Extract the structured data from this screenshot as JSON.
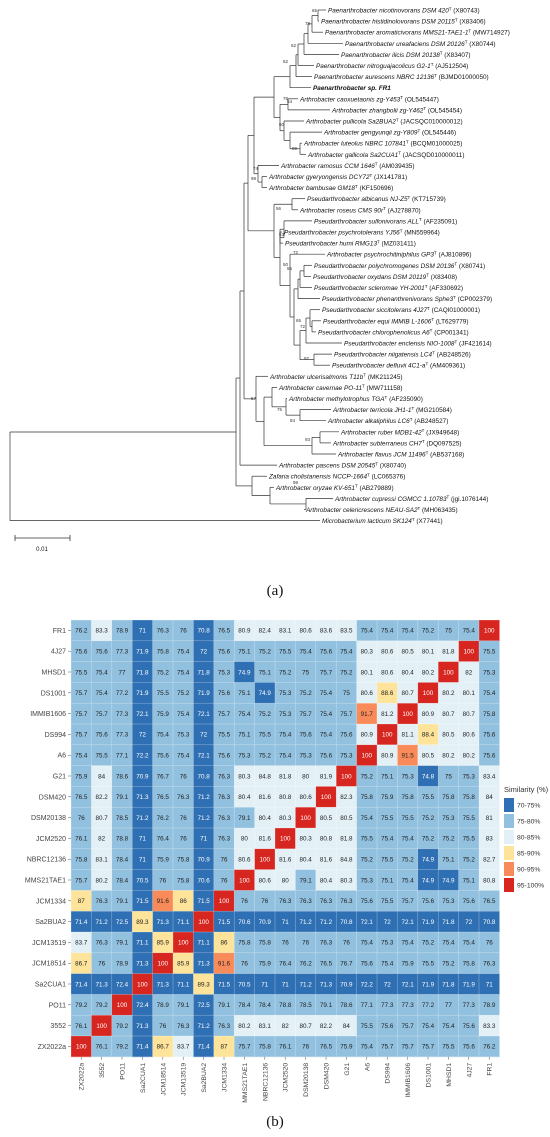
{
  "figure": {
    "panel_a_label": "(a)",
    "panel_b_label": "(b)"
  },
  "tree": {
    "scale_label": "0.01",
    "leaves": [
      {
        "name": "Paenarthrobacter nicotinovorans DSM 420",
        "sup": "T",
        "acc": "(X80743)"
      },
      {
        "name": "Paenarthrobacter histidinolovorans DSM 20115",
        "sup": "T",
        "acc": "(X83406)"
      },
      {
        "name": "Paenarthrobacter aromaticivorans MMS21-TAE1-1",
        "sup": "T",
        "acc": "(MW714927)"
      },
      {
        "name": "Paenarthrobacter ureafaciens DSM 20126",
        "sup": "T",
        "acc": "(X80744)"
      },
      {
        "name": "Paenarthrobacter ilicis DSM 20138",
        "sup": "T",
        "acc": "(X83407)"
      },
      {
        "name": "Paenarthrobacter nitroguajacolicus G2-1",
        "sup": "T",
        "acc": "(AJ512504)"
      },
      {
        "name": "Paenarthrobacter aurescens NBRC 12136",
        "sup": "T",
        "acc": "(BJMD01000050)"
      },
      {
        "name": "Paenarthrobacter sp. FR1",
        "sup": "",
        "acc": "",
        "bold": true
      },
      {
        "name": "Arthrobacter caoxuetaonis zg-Y453",
        "sup": "T",
        "acc": "(OL545447)"
      },
      {
        "name": "Arthrobacter zhangbolii zg-Y462",
        "sup": "T",
        "acc": "(OL545454)"
      },
      {
        "name": "Arthrobacter pullicola Sa2BUA2",
        "sup": "T",
        "acc": "(JACSQC010000012)"
      },
      {
        "name": "Arthrobacter gengyunqii zg-Y809",
        "sup": "T",
        "acc": "(OL545446)"
      },
      {
        "name": "Arthrobacter luteolus NBRC 107841",
        "sup": "T",
        "acc": "(BCQM01000025)"
      },
      {
        "name": "Arthrobacter gallicola Sa2CUA1",
        "sup": "T",
        "acc": "(JACSQD010000011)"
      },
      {
        "name": "Arthrobacter ramosus CCM 1646",
        "sup": "T",
        "acc": "(AM039435)"
      },
      {
        "name": "Arthrobacter gyeryongensis DCY72",
        "sup": "T",
        "acc": "(JX141781)"
      },
      {
        "name": "Arthrobacter bambusae GM18",
        "sup": "T",
        "acc": "(KF150696)"
      },
      {
        "name": "Pseudarthrobacter albicanus NJ-Z5",
        "sup": "T",
        "acc": "(KT715739)"
      },
      {
        "name": "Arthrobacter roseus CMS 90r",
        "sup": "T",
        "acc": "(AJ278870)"
      },
      {
        "name": "Pseudarthrobacter sulfonivorans ALL",
        "sup": "T",
        "acc": "(AF235091)"
      },
      {
        "name": "Pseudarthrobacter psychrotolerans YJ56",
        "sup": "T",
        "acc": "(MN559964)"
      },
      {
        "name": "Pseudarthrobacter humi RMG13",
        "sup": "T",
        "acc": "(MZ031411)"
      },
      {
        "name": "Arthrobacter psychrochitiniphilus GP3",
        "sup": "T",
        "acc": "(AJ810896)"
      },
      {
        "name": "Pseudarthrobacter polychromogenes DSM 20136",
        "sup": "T",
        "acc": "(X80741)"
      },
      {
        "name": "Pseudarthrobacter oxydans DSM 20119",
        "sup": "T",
        "acc": "(X83408)"
      },
      {
        "name": "Pseudarthrobacter scleromae YH-2001",
        "sup": "T",
        "acc": "(AF330692)"
      },
      {
        "name": "Pseudarthrobacter phenanthrenivorans Sphe3",
        "sup": "T",
        "acc": "(CP002379)"
      },
      {
        "name": "Pseudarthrobacter siccitolerans 4J27",
        "sup": "T",
        "acc": "(CAQI01000001)"
      },
      {
        "name": "Pseudarthrobacter equi IMMIB L-1606",
        "sup": "T",
        "acc": "(LT629779)"
      },
      {
        "name": "Pseudarthrobacter chlorophenolicus A6",
        "sup": "T",
        "acc": "(CP001341)"
      },
      {
        "name": "Pseudarthrobacter enclensis NIO-1008",
        "sup": "T",
        "acc": "(JF421614)"
      },
      {
        "name": "Pseudarthrobacter niigatensis LC4",
        "sup": "T",
        "acc": "(AB248526)"
      },
      {
        "name": "Pseudarthrobacter defluvii 4C1-a",
        "sup": "T",
        "acc": "(AM409361)"
      },
      {
        "name": "Arthrobacter ulcerisalmonis T11b",
        "sup": "T",
        "acc": "(MK211245)"
      },
      {
        "name": "Arthrobacter cavernae PO-11",
        "sup": "T",
        "acc": "(MW711158)"
      },
      {
        "name": "Arthrobacter methylotrophus TGA",
        "sup": "T",
        "acc": "(AF235090)"
      },
      {
        "name": "Arthrobacter terricola JH1-1",
        "sup": "T",
        "acc": "(MG210584)"
      },
      {
        "name": "Arthrobacter alkaliphilus LC6",
        "sup": "T",
        "acc": "(AB248527)"
      },
      {
        "name": "Arthrobacter ruber MDB1-42",
        "sup": "T",
        "acc": "(JX949648)"
      },
      {
        "name": "Arthrobacter subterraneus CH7",
        "sup": "T",
        "acc": "(DQ097525)"
      },
      {
        "name": "Arthrobacter flavus JCM 11496",
        "sup": "T",
        "acc": "(AB537168)"
      },
      {
        "name": "Arthrobacter pascens DSM 20545",
        "sup": "T",
        "acc": "(X80740)"
      },
      {
        "name": "Zafaria cholistanensis NCCP-1664",
        "sup": "T",
        "acc": "(LC065376)"
      },
      {
        "name": "Arthrobacter oryzae KV-651",
        "sup": "T",
        "acc": "(AB279889)"
      },
      {
        "name": "Arthrobacter cupressi CGMCC 1.10783",
        "sup": "T",
        "acc": "(jgi.1076144)"
      },
      {
        "name": "Arthrobacter celericrescens NEAU-SA2",
        "sup": "T",
        "acc": "(MH063435)"
      },
      {
        "name": "Microbacterium lacticum SK124",
        "sup": "T",
        "acc": "(X77441)"
      }
    ],
    "bootstrap_labels": [
      "65",
      "78",
      "52",
      "62",
      "78",
      "54",
      "99",
      "60",
      "74",
      "98",
      "56",
      "53",
      "72",
      "50",
      "55",
      "65",
      "72",
      "97",
      "57",
      "75",
      "84",
      "93",
      "98"
    ]
  },
  "heatmap": {
    "legend_title": "Similarity (%)",
    "legend_items": [
      {
        "label": "70-75%",
        "color": "#2f6fb3"
      },
      {
        "label": "75-80%",
        "color": "#92c0df"
      },
      {
        "label": "80-85%",
        "color": "#e3f1f7"
      },
      {
        "label": "85-90%",
        "color": "#fde49a"
      },
      {
        "label": "90-95%",
        "color": "#f98b5a"
      },
      {
        "label": "95-100%",
        "color": "#d7251f"
      }
    ],
    "rows": [
      "FR1",
      "4J27",
      "MHSD1",
      "DS1001",
      "IMMIB1606",
      "DS994",
      "A6",
      "G21",
      "DSM420",
      "DSM20138",
      "JCM2520",
      "NBRC12136",
      "MMS21TAE1",
      "JCM1334",
      "Sa2BUA2",
      "JCM13519",
      "JCM18514",
      "Sa2CUA1",
      "PO11",
      "3552",
      "ZX2022a"
    ],
    "columns": [
      "ZX2022a",
      "3552",
      "PO11",
      "Sa2CUA1",
      "JCM18514",
      "JCM13519",
      "Sa2BUA2",
      "JCM1334",
      "MMS21TAE1",
      "NBRC12136",
      "JCM2520",
      "DSM20138",
      "DSM420",
      "G21",
      "A6",
      "DS994",
      "IMMIB1606",
      "DS1001",
      "MHSD1",
      "4J27",
      "FR1"
    ],
    "values": [
      [
        76.2,
        83.3,
        78.9,
        71,
        76.3,
        76,
        70.8,
        76.5,
        80.9,
        82.4,
        83.1,
        80.6,
        83.6,
        83.5,
        75.4,
        75.4,
        75.4,
        75.2,
        75,
        75.4,
        100
      ],
      [
        75.6,
        75.6,
        77.3,
        71.9,
        75.8,
        75.4,
        72,
        75.6,
        75.1,
        75.2,
        75.5,
        75.4,
        75.6,
        75.4,
        80.3,
        80.6,
        80.5,
        80.1,
        81.8,
        100,
        75.5
      ],
      [
        75.5,
        75.4,
        77,
        71.8,
        75.2,
        75.4,
        71.8,
        75.3,
        74.9,
        75.1,
        75.2,
        75,
        75.7,
        75.2,
        80.1,
        80.6,
        80.4,
        80.2,
        100,
        82,
        75.3
      ],
      [
        75.7,
        75.4,
        77.2,
        71.9,
        75.5,
        75.2,
        71.9,
        75.6,
        75.1,
        74.9,
        75.3,
        75.2,
        75.4,
        75,
        80.6,
        88.6,
        80.7,
        100,
        80.2,
        80.1,
        75.4
      ],
      [
        75.7,
        75.7,
        77.3,
        72.1,
        75.9,
        75.4,
        72.1,
        75.7,
        75.4,
        75.2,
        75.3,
        75.7,
        75.4,
        75.7,
        91.7,
        81.2,
        100,
        80.9,
        80.7,
        80.7,
        75.8
      ],
      [
        75.7,
        75.6,
        77.3,
        72,
        75.4,
        75.3,
        72,
        75.5,
        75.1,
        75.5,
        75.4,
        75.6,
        75.4,
        75.6,
        80.9,
        100,
        81.1,
        88.4,
        80.5,
        80.6,
        75.6
      ],
      [
        75.4,
        75.5,
        77.1,
        72.2,
        75.6,
        75.4,
        72.1,
        75.6,
        75.3,
        75.2,
        75.4,
        75.3,
        75.6,
        75.3,
        100,
        80.9,
        91.5,
        80.5,
        80.2,
        80.2,
        75.6
      ],
      [
        75.9,
        84,
        78.6,
        70.9,
        76.7,
        76,
        70.8,
        76.3,
        80.3,
        84.8,
        81.8,
        80,
        81.9,
        100,
        75.2,
        75.1,
        75.3,
        74.8,
        75,
        75.3,
        83.4
      ],
      [
        76.5,
        82.2,
        79.1,
        71.3,
        76.5,
        76.3,
        71.2,
        76.3,
        80.4,
        81.6,
        80.8,
        80.6,
        100,
        82.3,
        75.8,
        75.9,
        75.8,
        75.5,
        75.8,
        75.8,
        84
      ],
      [
        76,
        80.7,
        78.5,
        71.2,
        76.2,
        76,
        71.2,
        76.3,
        79.1,
        80.4,
        80.3,
        100,
        80.5,
        80.5,
        75.4,
        75.5,
        75.5,
        75.2,
        75.3,
        75.5,
        81
      ],
      [
        76.1,
        82,
        78.8,
        71,
        76.4,
        76,
        71,
        76.3,
        80,
        81.6,
        100,
        80.3,
        80.8,
        81.8,
        75.5,
        75.4,
        75.4,
        75.2,
        75.2,
        75.5,
        83
      ],
      [
        75.8,
        83.1,
        78.4,
        71,
        75.9,
        75.8,
        70.9,
        76,
        80.6,
        100,
        81.6,
        80.4,
        81.6,
        84.8,
        75.2,
        75.5,
        75.2,
        74.9,
        75.1,
        75.2,
        82.7
      ],
      [
        75.7,
        80.2,
        78.4,
        70.5,
        76,
        75.8,
        70.6,
        76,
        100,
        80.6,
        80,
        79.1,
        80.4,
        80.3,
        75.3,
        75.1,
        75.4,
        74.9,
        74.9,
        75.1,
        80.8
      ],
      [
        87,
        76.3,
        79.1,
        71.5,
        91.6,
        86,
        71.5,
        100,
        76,
        76,
        76.3,
        76.3,
        76.3,
        76.3,
        75.6,
        75.5,
        75.7,
        75.6,
        75.3,
        75.6,
        76.5
      ],
      [
        71.4,
        71.2,
        72.5,
        89.3,
        71.3,
        71.1,
        100,
        71.5,
        70.6,
        70.9,
        71,
        71.2,
        71.2,
        70.8,
        72.1,
        72,
        72.1,
        71.9,
        71.8,
        72,
        70.8
      ],
      [
        83.7,
        76.3,
        79.1,
        71.1,
        85.9,
        100,
        71.1,
        86,
        75.8,
        75.8,
        76,
        76,
        76.3,
        76,
        75.4,
        75.3,
        75.4,
        75.2,
        75.4,
        75.4,
        76
      ],
      [
        86.7,
        76,
        78.9,
        71.3,
        100,
        85.9,
        71.3,
        91.6,
        76,
        75.9,
        76.4,
        76.2,
        76.5,
        76.7,
        75.6,
        75.4,
        75.9,
        75.5,
        75.2,
        75.8,
        76.3
      ],
      [
        71.4,
        71.3,
        72.4,
        100,
        71.3,
        71.1,
        89.3,
        71.5,
        70.5,
        71,
        71,
        71.2,
        71.3,
        70.9,
        72.2,
        72,
        72.1,
        71.9,
        71.8,
        71.9,
        71
      ],
      [
        79.2,
        79.2,
        100,
        72.4,
        78.9,
        79.1,
        72.5,
        79.1,
        78.4,
        78.4,
        78.8,
        78.5,
        79.1,
        78.6,
        77.1,
        77.3,
        77.3,
        77.2,
        77,
        77.3,
        78.9
      ],
      [
        76.1,
        100,
        79.2,
        71.3,
        76,
        76.3,
        71.2,
        76.3,
        80.2,
        83.1,
        82,
        80.7,
        82.2,
        84,
        75.5,
        75.6,
        75.7,
        75.4,
        75.4,
        75.6,
        83.3
      ],
      [
        100,
        76.1,
        79.2,
        71.4,
        86.7,
        83.7,
        71.4,
        87,
        75.7,
        75.8,
        76.1,
        76,
        76.5,
        75.9,
        75.4,
        75.7,
        75.7,
        75.7,
        75.5,
        75.6,
        76.2
      ]
    ]
  }
}
